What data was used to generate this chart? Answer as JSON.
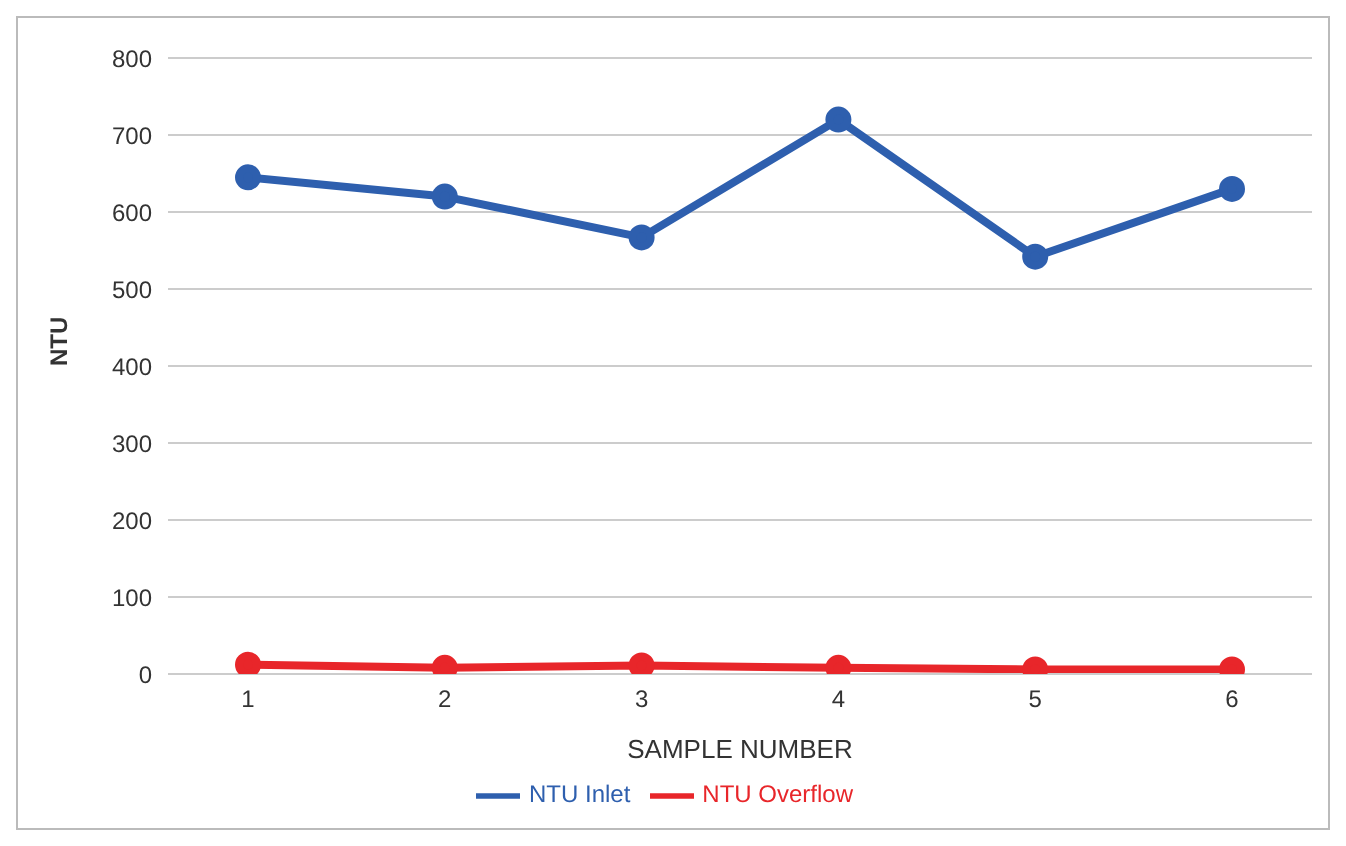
{
  "chart_data": {
    "type": "line",
    "xlabel": "SAMPLE NUMBER",
    "ylabel": "NTU",
    "categories": [
      "1",
      "2",
      "3",
      "4",
      "5",
      "6"
    ],
    "series": [
      {
        "name": "NTU Inlet",
        "color": "#2e5fae",
        "values": [
          645,
          620,
          567,
          720,
          542,
          630
        ]
      },
      {
        "name": "NTU Overflow",
        "color": "#e8262a",
        "values": [
          12,
          8,
          11,
          8,
          6,
          6
        ]
      }
    ],
    "ylim": [
      0,
      800
    ],
    "yticks": [
      0,
      100,
      200,
      300,
      400,
      500,
      600,
      700,
      800
    ],
    "grid": "y",
    "legend": "bottom",
    "marker": "circle",
    "line_style": "solid"
  }
}
